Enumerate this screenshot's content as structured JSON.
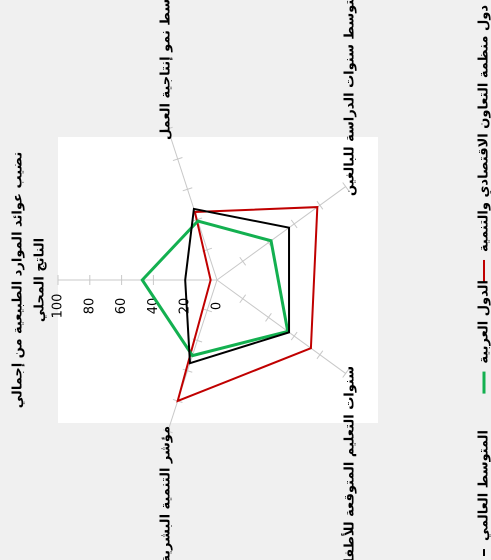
{
  "chart_data": {
    "type": "radar",
    "categories": [
      [
        "نضيب عوائد الموارد الطبيعية من إجمالي",
        "الناتج المحلي"
      ],
      [
        "متوسط نمو إنتاجية العمل"
      ],
      [
        "متوسط سنوات الدراسة للبالغين"
      ],
      [
        "سنوات التعليم المتوقعة للأطفال"
      ],
      [
        "مؤشر التنمية البشرية"
      ]
    ],
    "series": [
      {
        "name": "دول منظمة التعاون الاقتصادي والتنمية",
        "color": "#c00000",
        "values": [
          4,
          45,
          78,
          73,
          80
        ]
      },
      {
        "name": "الدول العربية",
        "color": "#13b050",
        "values": [
          47,
          39,
          42,
          55,
          50
        ]
      },
      {
        "name": "المتوسط العالمي",
        "color": "#000000",
        "values": [
          20,
          47,
          56,
          56,
          55
        ]
      }
    ],
    "rlim": [
      0,
      100
    ],
    "rticks": [
      0,
      20,
      40,
      60,
      80,
      100
    ],
    "legend": "right"
  }
}
